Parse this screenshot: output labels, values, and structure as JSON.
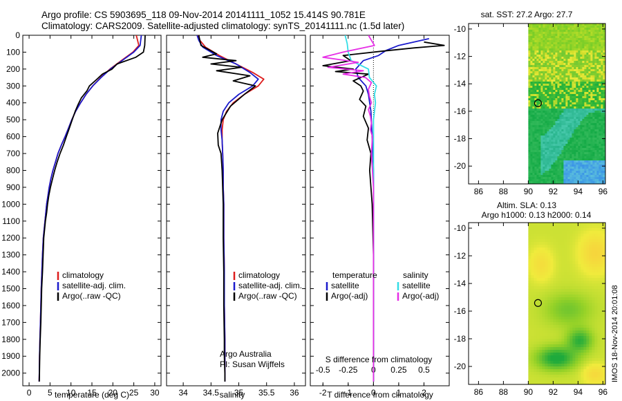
{
  "header": {
    "line1": "Argo profile: CS 5903695_118 09-Nov-2014 20141111_1052 15.414S 90.781E",
    "line2": "Climatology: CARS2009. Satellite-adjusted climatology: synTS_20141111.nc (1.5d later)"
  },
  "side_label": "IMOS 18-Nov-2014 20:01:08",
  "colors": {
    "climatology": "#dd1c1c",
    "satellite": "#1a1acc",
    "argo": "#000000",
    "satellite_s": "#33dde6",
    "argo_s": "#e62ee6"
  },
  "chart_data": [
    {
      "type": "line",
      "xlabel": "temperature (deg C)",
      "xlim": [
        -1.5,
        31.5
      ],
      "xticks": [
        0,
        5,
        10,
        15,
        20,
        25,
        30
      ],
      "ylim": [
        0,
        2075
      ],
      "yticks": [
        0,
        100,
        200,
        300,
        400,
        500,
        600,
        700,
        800,
        900,
        1000,
        1100,
        1200,
        1300,
        1400,
        1500,
        1600,
        1700,
        1800,
        1900,
        2000
      ],
      "legend": [
        "climatology",
        "satellite-adj. clim.",
        "Argo(..raw -QC)"
      ],
      "series": [
        {
          "name": "climatology",
          "color": "#dd1c1c",
          "x": [
            25.6,
            26.2,
            24.8,
            22.0,
            19.3,
            17.1,
            15.2,
            13.6,
            12.3,
            11.1,
            10.2,
            9.4,
            8.6,
            7.7,
            6.9,
            6.3,
            5.7,
            5.2,
            4.8,
            4.5,
            4.2,
            4.0,
            3.8,
            3.6,
            3.4,
            3.2,
            3.05,
            2.9,
            2.8,
            2.7,
            2.6,
            2.5,
            2.45,
            2.4
          ],
          "y": [
            0,
            60,
            100,
            150,
            200,
            250,
            300,
            350,
            400,
            450,
            500,
            550,
            600,
            650,
            700,
            750,
            800,
            850,
            900,
            950,
            1000,
            1050,
            1100,
            1150,
            1200,
            1300,
            1400,
            1500,
            1600,
            1700,
            1800,
            1900,
            2000,
            2050
          ]
        },
        {
          "name": "satellite-adj. clim.",
          "color": "#1a1acc",
          "x": [
            26.8,
            26.5,
            25.0,
            22.2,
            19.4,
            17.2,
            15.2,
            13.6,
            12.3,
            11.1,
            10.2,
            9.4,
            8.6,
            7.7,
            6.9,
            6.3,
            5.7,
            5.2,
            4.8,
            4.5,
            4.2,
            4.0,
            3.8,
            3.6,
            3.4,
            3.2,
            3.05,
            2.9,
            2.8,
            2.7,
            2.6,
            2.5,
            2.45,
            2.4
          ],
          "y": [
            0,
            60,
            100,
            150,
            200,
            250,
            300,
            350,
            400,
            450,
            500,
            550,
            600,
            650,
            700,
            750,
            800,
            850,
            900,
            950,
            1000,
            1050,
            1100,
            1150,
            1200,
            1300,
            1400,
            1500,
            1600,
            1700,
            1800,
            1900,
            2000,
            2050
          ]
        },
        {
          "name": "Argo(..raw -QC)",
          "color": "#000000",
          "x": [
            27.7,
            27.6,
            27.3,
            25.5,
            21.0,
            19.8,
            17.5,
            16.2,
            14.4,
            13.8,
            12.5,
            11.7,
            11.0,
            10.3,
            9.6,
            8.9,
            8.2,
            7.4,
            6.7,
            6.1,
            5.6,
            5.1,
            4.7,
            4.4,
            4.2,
            3.9,
            3.7,
            3.5,
            3.35,
            3.2,
            3.0,
            2.9,
            2.8,
            2.65,
            2.55,
            2.45
          ],
          "y": [
            0,
            60,
            100,
            130,
            170,
            200,
            230,
            260,
            300,
            330,
            370,
            410,
            450,
            500,
            550,
            600,
            650,
            700,
            750,
            800,
            850,
            900,
            950,
            1000,
            1050,
            1100,
            1150,
            1200,
            1300,
            1400,
            1500,
            1600,
            1700,
            1800,
            1900,
            2050
          ]
        }
      ]
    },
    {
      "type": "line",
      "xlabel": "salinity",
      "xlim": [
        33.7,
        36.2
      ],
      "xticks": [
        34,
        34.5,
        35,
        35.5,
        36
      ],
      "ylim": [
        0,
        2075
      ],
      "legend": [
        "climatology",
        "satellite-adj. clim.",
        "Argo(..raw -QC)"
      ],
      "annotations": [
        "Argo Australia",
        "PI: Susan Wijffels"
      ],
      "series": [
        {
          "name": "climatology",
          "color": "#dd1c1c",
          "x": [
            34.27,
            34.3,
            34.4,
            34.65,
            34.95,
            35.25,
            35.45,
            35.35,
            35.1,
            34.9,
            34.78,
            34.72,
            34.7,
            34.7,
            34.71,
            34.72,
            34.72,
            34.73,
            34.73,
            34.74,
            34.74,
            34.75,
            34.75,
            34.75,
            34.75
          ],
          "y": [
            0,
            30,
            70,
            120,
            170,
            220,
            260,
            300,
            350,
            400,
            450,
            500,
            560,
            620,
            700,
            800,
            900,
            1000,
            1200,
            1400,
            1600,
            1800,
            1900,
            2000,
            2050
          ]
        },
        {
          "name": "satellite-adj. clim.",
          "color": "#1a1acc",
          "x": [
            34.25,
            34.28,
            34.35,
            34.6,
            34.95,
            35.2,
            35.35,
            35.25,
            35.0,
            34.82,
            34.72,
            34.68,
            34.68,
            34.7,
            34.71,
            34.72,
            34.72,
            34.73,
            34.73,
            34.74,
            34.74,
            34.75,
            34.75,
            34.75,
            34.75
          ],
          "y": [
            0,
            30,
            70,
            120,
            170,
            220,
            260,
            300,
            350,
            400,
            450,
            500,
            560,
            620,
            700,
            800,
            900,
            1000,
            1200,
            1400,
            1600,
            1800,
            1900,
            2000,
            2050
          ]
        },
        {
          "name": "Argo(..raw -QC)",
          "color": "#000000",
          "x": [
            34.28,
            34.32,
            34.6,
            34.35,
            34.95,
            34.5,
            35.05,
            34.6,
            35.2,
            34.9,
            35.3,
            35.1,
            34.85,
            34.7,
            34.62,
            34.63,
            34.68,
            34.7,
            34.71,
            34.72,
            34.72,
            34.73,
            34.73,
            34.74,
            34.74,
            34.75,
            34.75
          ],
          "y": [
            0,
            60,
            110,
            130,
            150,
            170,
            190,
            210,
            240,
            270,
            300,
            350,
            420,
            500,
            580,
            650,
            700,
            800,
            900,
            1000,
            1200,
            1400,
            1600,
            1800,
            1900,
            2000,
            2050
          ]
        }
      ]
    },
    {
      "type": "line",
      "xlabel": "T difference from climatology",
      "x2label": "S difference from climatology",
      "xlim": [
        -2.5,
        3.0
      ],
      "xticks": [
        -2,
        -1,
        0,
        1,
        2
      ],
      "s_xlim": [
        -0.625,
        0.75
      ],
      "s_xticks": [
        -0.5,
        -0.25,
        0,
        0.25,
        0.5
      ],
      "ylim": [
        0,
        2075
      ],
      "legend_headers": [
        "temperature",
        "salinity"
      ],
      "legend": [
        "satellite",
        "Argo(-adj)",
        "satellite",
        "Argo(-adj)"
      ],
      "series": [
        {
          "name": "satellite",
          "group": "temperature",
          "color": "#1a1acc",
          "x": [
            2.2,
            1.0,
            0.5,
            0.2,
            -0.4,
            -0.7,
            -0.6,
            -0.3,
            -0.2,
            -0.1,
            -0.05,
            0,
            0,
            0,
            0
          ],
          "y": [
            20,
            60,
            90,
            120,
            150,
            200,
            250,
            300,
            350,
            450,
            600,
            800,
            1200,
            1600,
            2050
          ]
        },
        {
          "name": "Argo(-adj)",
          "group": "temperature",
          "color": "#000000",
          "x": [
            2.0,
            2.8,
            1.6,
            0.3,
            -1.2,
            -0.9,
            -2.0,
            -0.8,
            -1.5,
            -0.2,
            -0.8,
            -0.5,
            -0.4,
            -0.55,
            -0.3,
            -0.4,
            -0.2,
            -0.25,
            -0.1,
            -0.15,
            -0.05,
            0,
            0,
            0
          ],
          "y": [
            40,
            60,
            75,
            95,
            120,
            150,
            180,
            200,
            215,
            230,
            270,
            300,
            330,
            380,
            420,
            480,
            550,
            620,
            700,
            800,
            1000,
            1300,
            1700,
            2050
          ]
        },
        {
          "name": "satellite",
          "group": "salinity",
          "color": "#33dde6",
          "x": [
            -0.28,
            -0.26,
            -0.25,
            -0.22,
            -0.05,
            -0.04,
            0.03,
            0.01,
            0.02,
            0.0,
            0.0,
            0.0,
            0.0,
            0.0,
            0.0
          ],
          "y": [
            0,
            50,
            100,
            150,
            200,
            250,
            300,
            350,
            400,
            500,
            600,
            800,
            1200,
            1600,
            2050
          ]
        },
        {
          "name": "Argo(-adj)",
          "group": "salinity",
          "color": "#e62ee6",
          "x": [
            -0.05,
            0.01,
            -0.3,
            -0.5,
            -0.15,
            -0.45,
            -0.1,
            -0.3,
            -0.08,
            -0.02,
            -0.05,
            -0.04,
            -0.02,
            -0.05,
            -0.03,
            -0.02,
            -0.03,
            -0.01,
            -0.02,
            0.0,
            0.0,
            0.0
          ],
          "y": [
            0,
            60,
            100,
            130,
            160,
            190,
            210,
            230,
            250,
            280,
            320,
            360,
            400,
            440,
            480,
            520,
            560,
            600,
            700,
            900,
            1200,
            2050
          ]
        }
      ]
    },
    {
      "type": "heatmap",
      "title": "sat. SST: 27.2 Argo: 27.7",
      "xlim": [
        85.2,
        96.2
      ],
      "ylim": [
        -21.3,
        -9.6
      ],
      "xticks": [
        86,
        88,
        90,
        92,
        94,
        96
      ],
      "yticks": [
        -10,
        -12,
        -14,
        -16,
        -18,
        -20
      ],
      "data_xlim": [
        90,
        96.2
      ],
      "marker": {
        "lon": 90.781,
        "lat": -15.414
      }
    },
    {
      "type": "heatmap",
      "title": "Altim. SLA: 0.13",
      "subtitle": "Argo h1000: 0.13 h2000: 0.14",
      "xlim": [
        85.2,
        96.2
      ],
      "ylim": [
        -21.3,
        -9.6
      ],
      "xticks": [
        86,
        88,
        90,
        92,
        94,
        96
      ],
      "yticks": [
        -10,
        -12,
        -14,
        -16,
        -18,
        -20
      ],
      "data_xlim": [
        90,
        96.2
      ],
      "marker": {
        "lon": 90.781,
        "lat": -15.414
      }
    }
  ]
}
